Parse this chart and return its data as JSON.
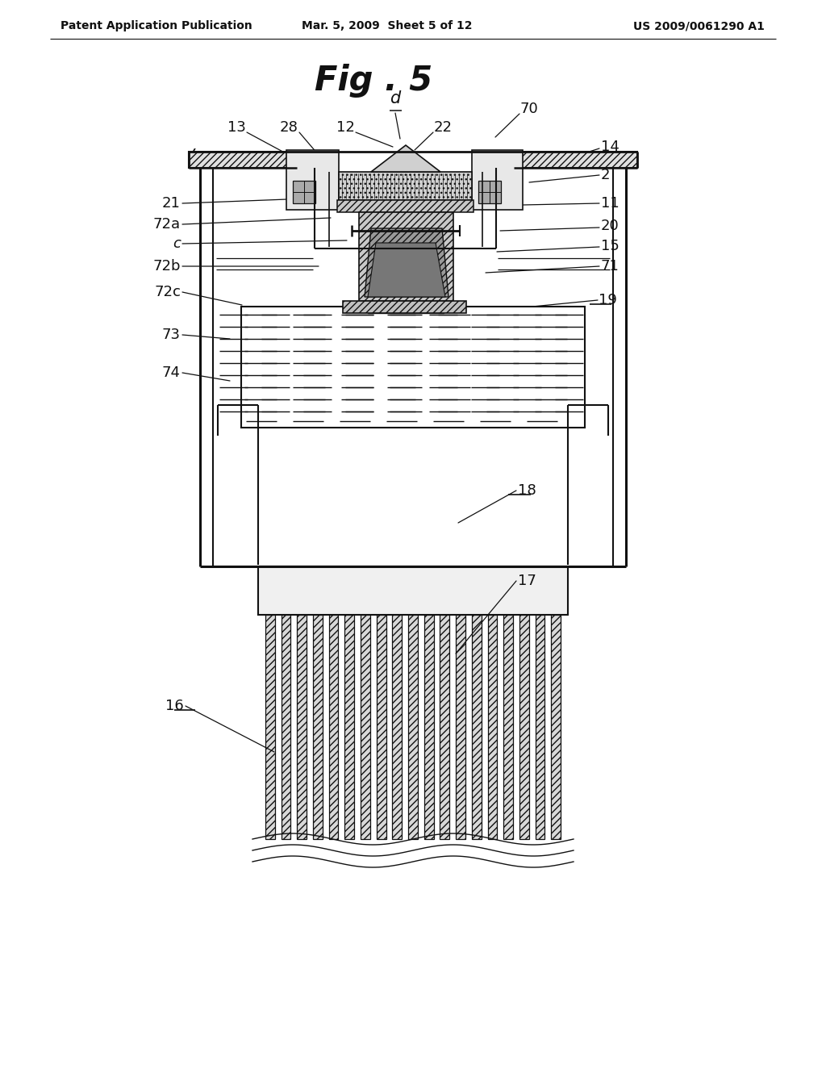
{
  "bg_color": "#ffffff",
  "header_left": "Patent Application Publication",
  "header_mid": "Mar. 5, 2009  Sheet 5 of 12",
  "header_right": "US 2009/0061290 A1",
  "lc": "#111111"
}
